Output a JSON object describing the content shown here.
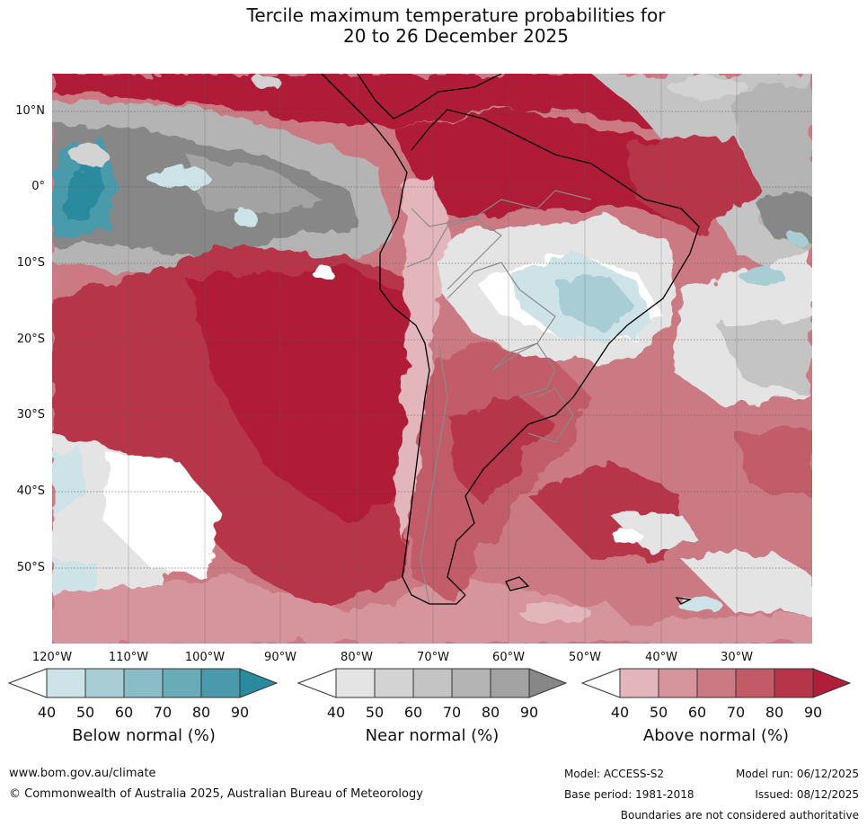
{
  "title": {
    "line1": "Tercile maximum temperature probabilities for",
    "line2": "20 to 26 December 2025"
  },
  "map": {
    "lat_labels": [
      "10°N",
      "0°",
      "10°S",
      "20°S",
      "30°S",
      "40°S",
      "50°S"
    ],
    "lon_labels": [
      "120°W",
      "110°W",
      "100°W",
      "90°W",
      "80°W",
      "70°W",
      "60°W",
      "50°W",
      "40°W",
      "30°W"
    ]
  },
  "legend": {
    "below": {
      "title": "Below normal (%)",
      "ticks": [
        "40",
        "50",
        "60",
        "70",
        "80",
        "90"
      ],
      "colors": [
        "#cde3e8",
        "#a9cdd4",
        "#8bbdc6",
        "#6aabb8",
        "#4a9aab",
        "#2a8a9e"
      ]
    },
    "near": {
      "title": "Near normal (%)",
      "ticks": [
        "40",
        "50",
        "60",
        "70",
        "80",
        "90"
      ],
      "colors": [
        "#e4e4e4",
        "#d3d3d3",
        "#c4c4c4",
        "#b4b4b4",
        "#a3a3a3",
        "#878787"
      ]
    },
    "above": {
      "title": "Above normal (%)",
      "ticks": [
        "40",
        "50",
        "60",
        "70",
        "80",
        "90"
      ],
      "colors": [
        "#e3b6bb",
        "#d6949c",
        "#cb7a84",
        "#c25b67",
        "#b73549",
        "#b01e39"
      ]
    }
  },
  "footer": {
    "website": "www.bom.gov.au/climate",
    "copyright": "© Commonwealth of Australia 2025, Australian Bureau of Meteorology",
    "model": "Model: ACCESS-S2",
    "model_run": "Model run: 06/12/2025",
    "base_period": "Base period: 1981-2018",
    "issued": "Issued: 08/12/2025",
    "disclaimer": "Boundaries are not considered authoritative"
  }
}
